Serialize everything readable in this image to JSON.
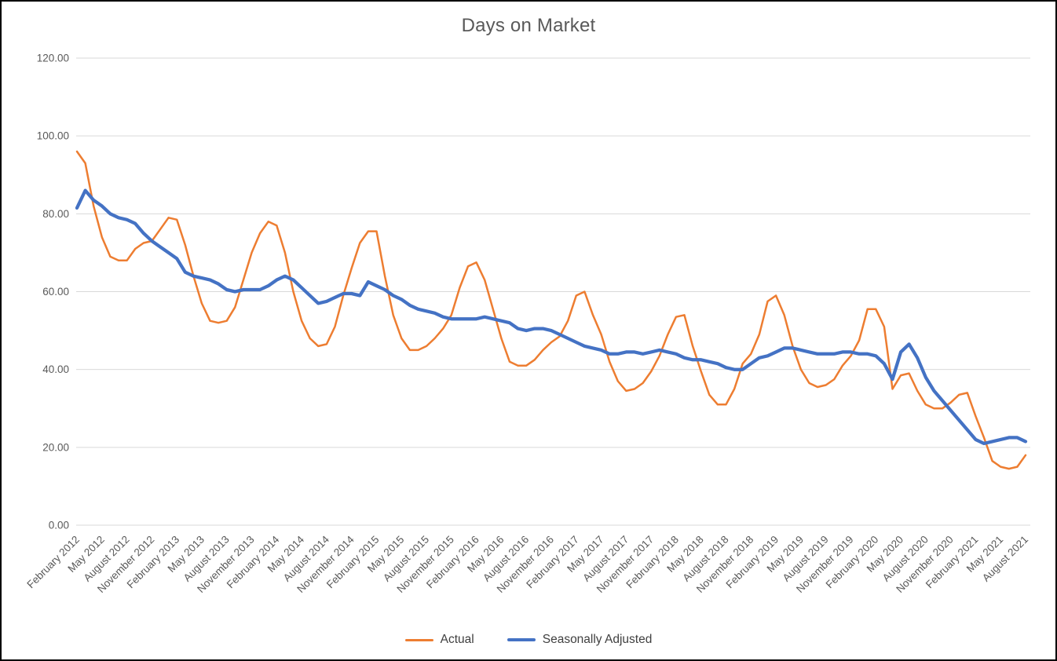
{
  "chart_data": {
    "type": "line",
    "title": "Days on Market",
    "ylim": [
      0,
      120
    ],
    "y_step": 20,
    "grid": "horizontal",
    "grid_color": "#d9d9d9",
    "axis_text_color": "#595959",
    "legend_position": "bottom-center",
    "y_tick_labels": [
      "120.00",
      "100.00",
      "80.00",
      "60.00",
      "40.00",
      "20.00",
      "0.00"
    ],
    "x_tick_every": 3,
    "x_tick_labels": [
      "February 2012",
      "May 2012",
      "August 2012",
      "November 2012",
      "February 2013",
      "May 2013",
      "August 2013",
      "November 2013",
      "February 2014",
      "May 2014",
      "August 2014",
      "November 2014",
      "February 2015",
      "May 2015",
      "August 2015",
      "November 2015",
      "February 2016",
      "May 2016",
      "August 2016",
      "November 2016",
      "February 2017",
      "May 2017",
      "August 2017",
      "November 2017",
      "February 2018",
      "May 2018",
      "August 2018",
      "November 2018",
      "February 2019",
      "May 2019",
      "August 2019",
      "November 2019",
      "February 2020",
      "May 2020",
      "August 2020",
      "November 2020",
      "February 2021",
      "May 2021",
      "August 2021"
    ],
    "categories": [
      "February 2012",
      "March 2012",
      "April 2012",
      "May 2012",
      "June 2012",
      "July 2012",
      "August 2012",
      "September 2012",
      "October 2012",
      "November 2012",
      "December 2012",
      "January 2013",
      "February 2013",
      "March 2013",
      "April 2013",
      "May 2013",
      "June 2013",
      "July 2013",
      "August 2013",
      "September 2013",
      "October 2013",
      "November 2013",
      "December 2013",
      "January 2014",
      "February 2014",
      "March 2014",
      "April 2014",
      "May 2014",
      "June 2014",
      "July 2014",
      "August 2014",
      "September 2014",
      "October 2014",
      "November 2014",
      "December 2014",
      "January 2015",
      "February 2015",
      "March 2015",
      "April 2015",
      "May 2015",
      "June 2015",
      "July 2015",
      "August 2015",
      "September 2015",
      "October 2015",
      "November 2015",
      "December 2015",
      "January 2016",
      "February 2016",
      "March 2016",
      "April 2016",
      "May 2016",
      "June 2016",
      "July 2016",
      "August 2016",
      "September 2016",
      "October 2016",
      "November 2016",
      "December 2016",
      "January 2017",
      "February 2017",
      "March 2017",
      "April 2017",
      "May 2017",
      "June 2017",
      "July 2017",
      "August 2017",
      "September 2017",
      "October 2017",
      "November 2017",
      "December 2017",
      "January 2018",
      "February 2018",
      "March 2018",
      "April 2018",
      "May 2018",
      "June 2018",
      "July 2018",
      "August 2018",
      "September 2018",
      "October 2018",
      "November 2018",
      "December 2018",
      "January 2019",
      "February 2019",
      "March 2019",
      "April 2019",
      "May 2019",
      "June 2019",
      "July 2019",
      "August 2019",
      "September 2019",
      "October 2019",
      "November 2019",
      "December 2019",
      "January 2020",
      "February 2020",
      "March 2020",
      "April 2020",
      "May 2020",
      "June 2020",
      "July 2020",
      "August 2020",
      "September 2020",
      "October 2020",
      "November 2020",
      "December 2020",
      "January 2021",
      "February 2021",
      "March 2021",
      "April 2021",
      "May 2021",
      "June 2021",
      "July 2021",
      "August 2021"
    ],
    "series": [
      {
        "name": "Actual",
        "color": "#ED7D31",
        "width": 2.5,
        "values": [
          96,
          93,
          82,
          74,
          69,
          68,
          68,
          71,
          72.5,
          73,
          76,
          79,
          78.5,
          72,
          64,
          57,
          52.5,
          52,
          52.5,
          56,
          63,
          70,
          75,
          78,
          77,
          70,
          60,
          52.5,
          48,
          46,
          46.5,
          51,
          59,
          66,
          72.5,
          75.5,
          75.5,
          64,
          54,
          48,
          45,
          45,
          46,
          48,
          50.5,
          54,
          61,
          66.5,
          67.5,
          63,
          55.5,
          48,
          42,
          41,
          41,
          42.5,
          45,
          47,
          48.5,
          52.5,
          59,
          60,
          54,
          49,
          42,
          37,
          34.5,
          35,
          36.5,
          39.5,
          43.5,
          49,
          53.5,
          54,
          46,
          39.5,
          33.5,
          31,
          31,
          35,
          41.5,
          44,
          49,
          57.5,
          59,
          54,
          46,
          40,
          36.5,
          35.5,
          36,
          37.5,
          41,
          43.5,
          47.5,
          55.5,
          55.5,
          51,
          35,
          38.5,
          39,
          34.5,
          31,
          30,
          30,
          31.5,
          33.5,
          34,
          28,
          22.5,
          16.5,
          15,
          14.5,
          15,
          18
        ]
      },
      {
        "name": "Seasonally Adjusted",
        "color": "#4472C4",
        "width": 4.25,
        "values": [
          81.5,
          86,
          83.5,
          82,
          80,
          79,
          78.5,
          77.5,
          75,
          73,
          71.5,
          70,
          68.5,
          65,
          64,
          63.5,
          63,
          62,
          60.5,
          60,
          60.5,
          60.5,
          60.5,
          61.5,
          63,
          64,
          63,
          61,
          59,
          57,
          57.5,
          58.5,
          59.5,
          59.5,
          59,
          62.5,
          61.5,
          60.5,
          59,
          58,
          56.5,
          55.5,
          55,
          54.5,
          53.5,
          53,
          53,
          53,
          53,
          53.5,
          53,
          52.5,
          52,
          50.5,
          50,
          50.5,
          50.5,
          50,
          49,
          48,
          47,
          46,
          45.5,
          45,
          44,
          44,
          44.5,
          44.5,
          44,
          44.5,
          45,
          44.5,
          44,
          43,
          42.5,
          42.5,
          42,
          41.5,
          40.5,
          40,
          40,
          41.5,
          43,
          43.5,
          44.5,
          45.5,
          45.5,
          45,
          44.5,
          44,
          44,
          44,
          44.5,
          44.5,
          44,
          44,
          43.5,
          41.5,
          37.5,
          44.5,
          46.5,
          43,
          38,
          34.5,
          32,
          29.5,
          27,
          24.5,
          22,
          21,
          21.5,
          22,
          22.5,
          22.5,
          21.5
        ]
      }
    ]
  }
}
